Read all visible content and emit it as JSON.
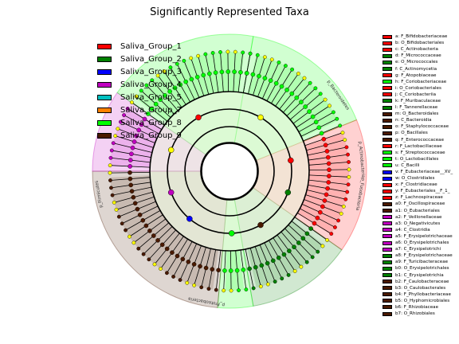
{
  "title": "Significantly Represented Taxa",
  "colors": {
    "Saliva_Group_1": "#ff0000",
    "Saliva_Group_2": "#008000",
    "Saliva_Group_3": "#0000ff",
    "Saliva_Group_4": "#c000c0",
    "Saliva_Group_5": "#00c0c0",
    "Saliva_Group_7": "#ff8000",
    "Saliva_Group_8": "#00ff00",
    "Saliva_Group_9": "#4a1a00"
  },
  "legend_groups": [
    {
      "label": "Saliva_Group_1",
      "color": "#ff0000"
    },
    {
      "label": "Saliva_Group_2",
      "color": "#008000"
    },
    {
      "label": "Saliva_Group_3",
      "color": "#0000ff"
    },
    {
      "label": "Saliva_Group_4",
      "color": "#c000c0"
    },
    {
      "label": "Saliva_Group_5",
      "color": "#00c0c0"
    },
    {
      "label": "Saliva_Group_7",
      "color": "#ff8000"
    },
    {
      "label": "Saliva_Group_8",
      "color": "#00ff00"
    },
    {
      "label": "Saliva_Group_9",
      "color": "#4a1a00"
    }
  ],
  "taxa_legend": [
    {
      "label": "a: F_Bifidobacteriaceae",
      "color": "#ff0000"
    },
    {
      "label": "b: O_Bifidobacteriales",
      "color": "#ff0000"
    },
    {
      "label": "c: C_Actinobacteria",
      "color": "#ff0000"
    },
    {
      "label": "d: F_Micrococcaceae",
      "color": "#008000"
    },
    {
      "label": "e: O_Micrococcales",
      "color": "#008000"
    },
    {
      "label": "f: C_Actinomycetia",
      "color": "#008000"
    },
    {
      "label": "g: F_Atopobiaceae",
      "color": "#ff0000"
    },
    {
      "label": "h: F_Coriobacteriaceae",
      "color": "#00ff00"
    },
    {
      "label": "i: O_Coriobacteriales",
      "color": "#ff0000"
    },
    {
      "label": "j: C_Coriobacteriia",
      "color": "#ff0000"
    },
    {
      "label": "k: F_Muribaculaceae",
      "color": "#008000"
    },
    {
      "label": "l: F_Tannerellaceae",
      "color": "#008000"
    },
    {
      "label": "m: O_Bacteroidales",
      "color": "#4a1a00"
    },
    {
      "label": "n: C_Bacteroidia",
      "color": "#4a1a00"
    },
    {
      "label": "o: F_Staphylococcaceae",
      "color": "#4a1a00"
    },
    {
      "label": "p: O_Bacillales",
      "color": "#4a1a00"
    },
    {
      "label": "q: F_Enterococcaceae",
      "color": "#4a1a00"
    },
    {
      "label": "r: F_Lactobacillaceae",
      "color": "#ff0000"
    },
    {
      "label": "s: F_Streptococcaceae",
      "color": "#00ff00"
    },
    {
      "label": "t: O_Lactobacillales",
      "color": "#00ff00"
    },
    {
      "label": "u: C_Bacilli",
      "color": "#00ff00"
    },
    {
      "label": "v: F_Eubacteriaceae__XV_",
      "color": "#0000ff"
    },
    {
      "label": "w: O_Clostridiales",
      "color": "#0000ff"
    },
    {
      "label": "x: F_Clostridiaceae",
      "color": "#ff0000"
    },
    {
      "label": "y: F_Eubacteriales__F_1_",
      "color": "#ff0000"
    },
    {
      "label": "z: F_Lachnospiraceae",
      "color": "#ff0000"
    },
    {
      "label": "a0: F_Oscillospiraceae",
      "color": "#4a1a00"
    },
    {
      "label": "a1: O_Eubacteriales",
      "color": "#4a1a00"
    },
    {
      "label": "a2: F_Veillonellaceae",
      "color": "#c000c0"
    },
    {
      "label": "a3: O_Negativicutes",
      "color": "#c000c0"
    },
    {
      "label": "a4: C_Clostridia",
      "color": "#c000c0"
    },
    {
      "label": "a5: F_Erysipelotrichaceae",
      "color": "#c000c0"
    },
    {
      "label": "a6: O_Erysipelotrichales",
      "color": "#c000c0"
    },
    {
      "label": "a7: C_Erysipelotrichi",
      "color": "#c000c0"
    },
    {
      "label": "a8: F_Erysipelotrichaceae",
      "color": "#008000"
    },
    {
      "label": "a9: F_Turicibacteraceae",
      "color": "#008000"
    },
    {
      "label": "b0: O_Erysipelotrichales",
      "color": "#008000"
    },
    {
      "label": "b1: C_Erysipelotrichia",
      "color": "#008000"
    },
    {
      "label": "b2: F_Caulobacteraceae",
      "color": "#4a1a00"
    },
    {
      "label": "b3: O_Caulobacterales",
      "color": "#4a1a00"
    },
    {
      "label": "b4: F_Phyllobacteriaceae",
      "color": "#4a1a00"
    },
    {
      "label": "b5: O_Hyphomicrobiales",
      "color": "#4a1a00"
    },
    {
      "label": "b6: F_Rhizobiaceae",
      "color": "#4a1a00"
    },
    {
      "label": "b7: O_Rhizobiales",
      "color": "#4a1a00"
    }
  ],
  "outer_labels": [
    "p_Bacteroidetes",
    "p_Actinobacteria",
    "p_Fusobacteria",
    "p_Firmicutes",
    "p_Proteobacteria"
  ],
  "sectors": [
    {
      "color": "#00ff00",
      "a0": -80,
      "a1": -22
    },
    {
      "color": "#ff0000",
      "a0": -22,
      "a1": 35
    },
    {
      "color": "#008000",
      "a0": 35,
      "a1": 80
    },
    {
      "color": "#00ff00",
      "a0": 80,
      "a1": 95
    },
    {
      "color": "#4a1a00",
      "a0": 95,
      "a1": 180
    },
    {
      "color": "#c000c0",
      "a0": 180,
      "a1": 215
    },
    {
      "color": "#00ff00",
      "a0": 215,
      "a1": 280
    }
  ]
}
